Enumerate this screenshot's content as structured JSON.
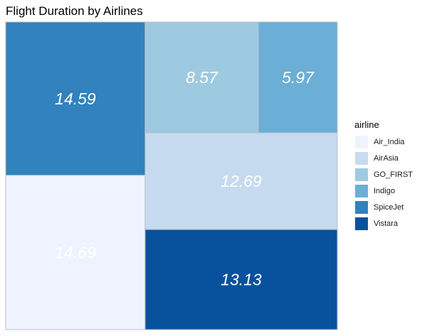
{
  "chart_data": {
    "type": "treemap",
    "title": "Flight Duration by Airlines",
    "legend_title": "airline",
    "legend_position": "right",
    "value_label_style": "italic",
    "items": [
      {
        "name": "Air_India",
        "value": 14.69,
        "color": "#eff3ff",
        "label_color": "#ffffff"
      },
      {
        "name": "AirAsia",
        "value": 12.69,
        "color": "#c6dbef",
        "label_color": "#ffffff"
      },
      {
        "name": "GO_FIRST",
        "value": 8.57,
        "color": "#9ecae1",
        "label_color": "#ffffff"
      },
      {
        "name": "Indigo",
        "value": 5.97,
        "color": "#6baed6",
        "label_color": "#ffffff"
      },
      {
        "name": "SpiceJet",
        "value": 14.59,
        "color": "#3182bd",
        "label_color": "#ffffff"
      },
      {
        "name": "Vistara",
        "value": 13.13,
        "color": "#08519c",
        "label_color": "#ffffff"
      }
    ]
  }
}
